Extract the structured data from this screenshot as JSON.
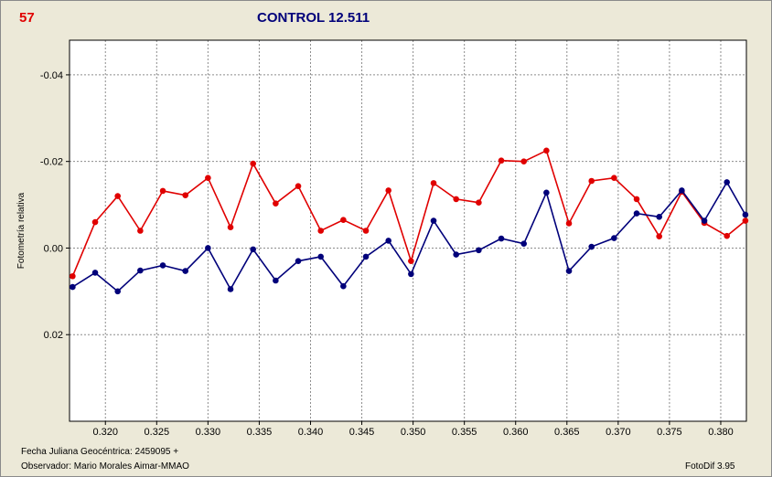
{
  "header": {
    "number": "57",
    "title": "CONTROL 12.511"
  },
  "footer": {
    "date_label": "Fecha Juliana Geocéntrica: 2459095 +",
    "observer_label": "Observador: Mario Morales Aimar-MMAO",
    "version_label": "FotoDif 3.95"
  },
  "chart_data": {
    "type": "line",
    "title": "CONTROL 12.511",
    "xlabel": "",
    "ylabel": "Fotometría relativa",
    "xlim": [
      0.3165,
      0.3825
    ],
    "ylim": [
      0.04,
      -0.048
    ],
    "y_reversed": true,
    "grid": true,
    "x_ticks": [
      0.32,
      0.325,
      0.33,
      0.335,
      0.34,
      0.345,
      0.35,
      0.355,
      0.36,
      0.365,
      0.37,
      0.375,
      0.38
    ],
    "x_tick_labels": [
      "0.320",
      "0.325",
      "0.330",
      "0.335",
      "0.340",
      "0.345",
      "0.350",
      "0.355",
      "0.360",
      "0.365",
      "0.370",
      "0.375",
      "0.380"
    ],
    "y_ticks": [
      -0.04,
      -0.02,
      0.0,
      0.02
    ],
    "y_tick_labels": [
      "-0.04",
      "-0.02",
      "0.00",
      "0.02"
    ],
    "x": [
      0.3168,
      0.319,
      0.3212,
      0.3234,
      0.3256,
      0.3278,
      0.33,
      0.3322,
      0.3344,
      0.3366,
      0.3388,
      0.341,
      0.3432,
      0.3454,
      0.3476,
      0.3498,
      0.352,
      0.3542,
      0.3564,
      0.3586,
      0.3608,
      0.363,
      0.3652,
      0.3674,
      0.3696,
      0.3718,
      0.374,
      0.3762,
      0.3784,
      0.3806,
      0.3824
    ],
    "series": [
      {
        "color": "#e00000",
        "values": [
          0.0065,
          -0.006,
          -0.012,
          -0.004,
          -0.0132,
          -0.0122,
          -0.0162,
          -0.0048,
          -0.0195,
          -0.0103,
          -0.0143,
          -0.004,
          -0.0065,
          -0.004,
          -0.0133,
          0.003,
          -0.015,
          -0.0113,
          -0.0105,
          -0.0202,
          -0.02,
          -0.0225,
          -0.0057,
          -0.0155,
          -0.0162,
          -0.0113,
          -0.0027,
          -0.013,
          -0.0058,
          -0.0028,
          -0.0063
        ]
      },
      {
        "color": "#00007a",
        "values": [
          0.009,
          0.0057,
          0.01,
          0.0052,
          0.004,
          0.0053,
          0.0,
          0.0095,
          0.0003,
          0.0075,
          0.003,
          0.002,
          0.0088,
          0.002,
          -0.0017,
          0.006,
          -0.0063,
          0.0015,
          0.0005,
          -0.0022,
          -0.001,
          -0.0128,
          0.0053,
          -0.0003,
          -0.0023,
          -0.008,
          -0.0072,
          -0.0133,
          -0.0063,
          -0.0152,
          -0.0077
        ]
      }
    ]
  }
}
